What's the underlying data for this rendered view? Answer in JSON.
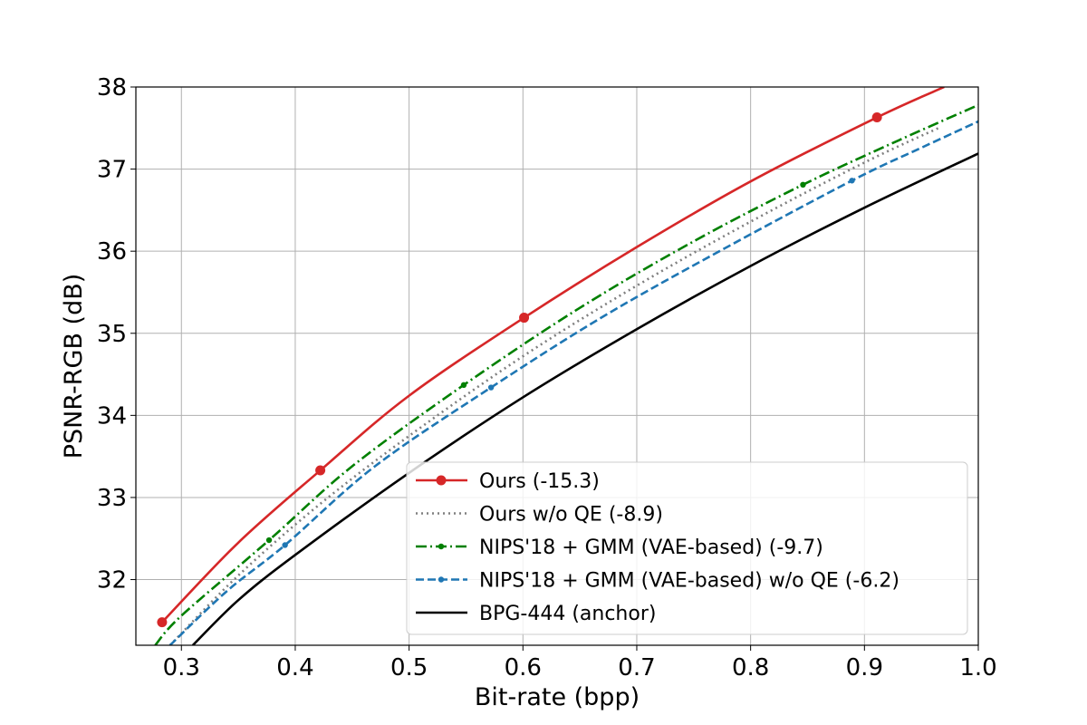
{
  "chart_data": {
    "type": "line",
    "xlabel": "Bit-rate (bpp)",
    "ylabel": "PSNR-RGB (dB)",
    "xlim": [
      0.26,
      1.0
    ],
    "ylim": [
      31.2,
      38.0
    ],
    "xticks": [
      0.3,
      0.4,
      0.5,
      0.6,
      0.7,
      0.8,
      0.9,
      1.0
    ],
    "xtick_labels": [
      "0.3",
      "0.4",
      "0.5",
      "0.6",
      "0.7",
      "0.8",
      "0.9",
      "1.0"
    ],
    "yticks": [
      32,
      33,
      34,
      35,
      36,
      37,
      38
    ],
    "ytick_labels": [
      "32",
      "33",
      "34",
      "35",
      "36",
      "37",
      "38"
    ],
    "grid": true,
    "legend_position": "lower-right",
    "series": [
      {
        "name": "Ours (-15.3)",
        "color": "#d62728",
        "linestyle": "solid",
        "marker": "large-circle",
        "x": [
          0.283,
          0.35,
          0.422,
          0.5,
          0.601,
          0.7,
          0.8,
          0.911,
          0.97
        ],
        "y": [
          31.48,
          32.45,
          33.33,
          34.24,
          35.19,
          36.05,
          36.85,
          37.63,
          38.0
        ],
        "marker_x": [
          0.283,
          0.422,
          0.601,
          0.911
        ],
        "marker_y": [
          31.48,
          33.33,
          35.19,
          37.63
        ]
      },
      {
        "name": "Ours w/o QE (-8.9)",
        "color": "#7f7f7f",
        "linestyle": "dotted",
        "marker": "none",
        "x": [
          0.29,
          0.35,
          0.42,
          0.5,
          0.6,
          0.7,
          0.8,
          0.9,
          0.965
        ],
        "y": [
          31.2,
          32.05,
          32.9,
          33.75,
          34.72,
          35.58,
          36.36,
          37.08,
          37.5
        ],
        "marker_x": [],
        "marker_y": []
      },
      {
        "name": "NIPS'18 + GMM (VAE-based) (-9.7)",
        "color": "#008000",
        "linestyle": "dashdot",
        "marker": "small-dot",
        "x": [
          0.277,
          0.3,
          0.377,
          0.45,
          0.548,
          0.65,
          0.75,
          0.846,
          0.93,
          1.0
        ],
        "y": [
          31.2,
          31.56,
          32.48,
          33.38,
          34.37,
          35.31,
          36.12,
          36.81,
          37.35,
          37.78
        ],
        "marker_x": [
          0.377,
          0.548,
          0.846
        ],
        "marker_y": [
          32.48,
          34.37,
          36.81
        ]
      },
      {
        "name": "NIPS'18 + GMM (VAE-based) w/o QE (-6.2)",
        "color": "#1f77b4",
        "linestyle": "dashed",
        "marker": "small-dot",
        "x": [
          0.29,
          0.34,
          0.391,
          0.47,
          0.572,
          0.67,
          0.77,
          0.889,
          0.95,
          1.0
        ],
        "y": [
          31.2,
          31.86,
          32.42,
          33.38,
          34.34,
          35.2,
          35.98,
          36.86,
          37.26,
          37.58
        ],
        "marker_x": [
          0.391,
          0.572,
          0.889
        ],
        "marker_y": [
          32.42,
          34.34,
          36.86
        ]
      },
      {
        "name": "BPG-444 (anchor)",
        "color": "#000000",
        "linestyle": "solid",
        "marker": "none",
        "x": [
          0.31,
          0.35,
          0.4,
          0.5,
          0.6,
          0.7,
          0.8,
          0.9,
          1.0
        ],
        "y": [
          31.2,
          31.75,
          32.3,
          33.3,
          34.22,
          35.05,
          35.82,
          36.53,
          37.19
        ],
        "marker_x": [],
        "marker_y": []
      }
    ]
  }
}
